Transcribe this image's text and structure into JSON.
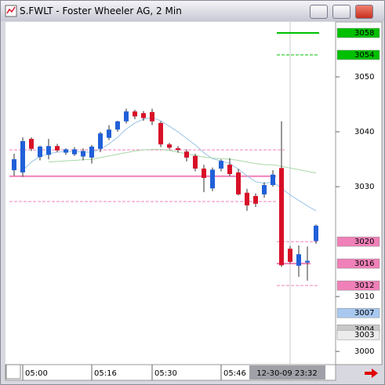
{
  "window": {
    "title": "S.FWLT - Foster Wheeler AG, 2 Min"
  },
  "chart_data": {
    "type": "candlestick",
    "categories": [
      null,
      "05:00",
      null,
      null,
      null,
      null,
      null,
      null,
      null,
      "05:16",
      null,
      null,
      null,
      null,
      null,
      null,
      "05:30",
      null,
      null,
      null,
      null,
      null,
      null,
      null,
      "05:46",
      null,
      null,
      null,
      null,
      null,
      null,
      null,
      null,
      null,
      null,
      null
    ],
    "open": [
      3033,
      3032.6,
      3038.7,
      3035.4,
      3035.8,
      3037.4,
      3036.2,
      3035.9,
      3035.5,
      3035.3,
      3036.9,
      3038.9,
      3040.4,
      3041.9,
      3043.7,
      3043.4,
      3043.6,
      3041.6,
      3037.7,
      3037,
      3036.4,
      3035.6,
      3033.3,
      3029.7,
      3033.3,
      3034,
      3032.6,
      3028.9,
      3028.3,
      3028.6,
      3030.3,
      3033.4,
      3018.7,
      3015.6,
      3016.2,
      3020.1
    ],
    "high": [
      3036,
      3039,
      3039,
      3037.5,
      3038.7,
      3037.8,
      3037,
      3037.2,
      3037,
      3037.6,
      3040,
      3041.2,
      3042,
      3044.2,
      3044,
      3043.8,
      3044.2,
      3041.9,
      3038,
      3037.4,
      3036.8,
      3036,
      3034,
      3033.5,
      3035,
      3035.2,
      3033.2,
      3029.6,
      3028.8,
      3030.8,
      3033,
      3041.9,
      3019.2,
      3019.3,
      3019.1,
      3023.1
    ],
    "low": [
      3032,
      3031.8,
      3036.5,
      3034.8,
      3035,
      3036.3,
      3035.8,
      3035.6,
      3034.8,
      3034.2,
      3036.3,
      3038.5,
      3040,
      3041.5,
      3042.3,
      3042,
      3041.2,
      3037.2,
      3036.8,
      3036.2,
      3034.6,
      3032.8,
      3029,
      3029.2,
      3032.8,
      3031.9,
      3028.4,
      3025.6,
      3026.3,
      3028,
      3030,
      3015.4,
      3016,
      3013.6,
      3012.9,
      3019.6
    ],
    "close": [
      3035,
      3038.3,
      3036.9,
      3037.3,
      3037.4,
      3036.6,
      3036.8,
      3036.8,
      3036.5,
      3037.3,
      3039.7,
      3040.4,
      3041.9,
      3043.7,
      3042.8,
      3042.5,
      3041.9,
      3037.7,
      3037.1,
      3036.7,
      3035.3,
      3033.3,
      3031.6,
      3033.1,
      3034.7,
      3032.3,
      3028.6,
      3026.6,
      3026.9,
      3030.3,
      3032.2,
      3015.7,
      3016.3,
      3017.7,
      3016.5,
      3022.9
    ],
    "up_color": "#2060d8",
    "down_color": "#d81028",
    "ylim": [
      2997.6,
      3060
    ],
    "yticks": [
      3000,
      3010,
      3030,
      3040,
      3050
    ],
    "price_tags": [
      3058,
      3054,
      3020,
      3016,
      3012,
      3007,
      3004,
      3003
    ],
    "price_tag_colors": [
      "#00c000",
      "#00c000",
      "#f080b8",
      "#f080b8",
      "#f080b8",
      "#a8c8f0",
      "#c8c8c8",
      "#ececec"
    ],
    "overlays": [
      {
        "color": "#9cc4e8",
        "values": [
          null,
          3033,
          3034.5,
          3035.5,
          3036,
          3036.3,
          3036.4,
          3036.4,
          3036.3,
          3036.3,
          3036.8,
          3037.8,
          3039,
          3040.5,
          3041.6,
          3042.3,
          3042.6,
          3042,
          3041,
          3040,
          3038.8,
          3037.6,
          3036.2,
          3035.1,
          3034.7,
          3034.2,
          3033.2,
          3032,
          3030.9,
          3030.6,
          3030.9,
          3029.7,
          3028.5,
          3027.5,
          3026.5,
          3025.6
        ]
      },
      {
        "color": "#a8d8a8",
        "values": [
          null,
          null,
          null,
          null,
          3034.5,
          3034.6,
          3034.7,
          3034.8,
          3034.9,
          3035,
          3035.3,
          3035.6,
          3035.9,
          3036.2,
          3036.5,
          3036.7,
          3036.8,
          3036.8,
          3036.6,
          3036.3,
          3036,
          3035.7,
          3035.4,
          3035.2,
          3035.1,
          3035,
          3034.8,
          3034.5,
          3034.2,
          3034,
          3034,
          3033.7,
          3033.4,
          3033.1,
          3032.8,
          3032.5
        ]
      }
    ],
    "levels": [
      {
        "value": 3036.7,
        "color": "#f080b8",
        "dash": true,
        "from": 0,
        "to": 31
      },
      {
        "value": 3031.9,
        "color": "#f080b8",
        "dash": false,
        "from": 0,
        "to": 30
      },
      {
        "value": 3027.3,
        "color": "#f080b8",
        "dash": true,
        "from": 0,
        "to": 30
      },
      {
        "value": 3020,
        "color": "#f080b8",
        "dash": true,
        "from": 31,
        "to": 35
      },
      {
        "value": 3016,
        "color": "#f080b8",
        "dash": false,
        "from": 31,
        "to": 34
      },
      {
        "value": 3012,
        "color": "#f080b8",
        "dash": true,
        "from": 31,
        "to": 35
      },
      {
        "value": 3054,
        "color": "#00c000",
        "dash": true,
        "from": 31,
        "to": 35
      },
      {
        "value": 3058,
        "color": "#00c000",
        "dash": false,
        "from": 31,
        "to": 35
      }
    ],
    "cursor": {
      "index": 32,
      "label": "12-30-09 23:32"
    }
  }
}
